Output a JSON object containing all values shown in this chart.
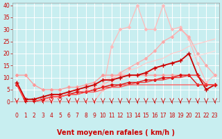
{
  "background_color": "#c8eef0",
  "grid_color": "#ffffff",
  "xlabel": "Vent moyen/en rafales ( km/h )",
  "xlim": [
    -0.5,
    23.5
  ],
  "ylim": [
    0,
    41
  ],
  "xticks": [
    0,
    1,
    2,
    3,
    4,
    5,
    6,
    7,
    8,
    9,
    10,
    11,
    12,
    13,
    14,
    15,
    16,
    17,
    18,
    19,
    20,
    21,
    22,
    23
  ],
  "yticks": [
    0,
    5,
    10,
    15,
    20,
    25,
    30,
    35,
    40
  ],
  "lines": [
    {
      "x": [
        0,
        1,
        2,
        3,
        4,
        5,
        6,
        7,
        8,
        9,
        10,
        11,
        12,
        13,
        14,
        15,
        16,
        17,
        18,
        19,
        20,
        21,
        22,
        23
      ],
      "y": [
        0,
        0,
        0,
        0,
        0,
        0,
        0,
        0,
        0,
        0,
        5,
        23,
        30,
        31,
        40,
        30,
        30,
        40,
        30,
        31,
        26,
        16,
        8,
        11
      ],
      "color": "#ffbbbb",
      "linewidth": 0.9,
      "marker": "D",
      "markersize": 2.0
    },
    {
      "x": [
        0,
        1,
        2,
        3,
        4,
        5,
        6,
        7,
        8,
        9,
        10,
        11,
        12,
        13,
        14,
        15,
        16,
        17,
        18,
        19,
        20,
        21,
        22,
        23
      ],
      "y": [
        0,
        0,
        0,
        0,
        1,
        2,
        3,
        4,
        5,
        6,
        7,
        9,
        12,
        14,
        16,
        18,
        21,
        25,
        27,
        30,
        27,
        20,
        15,
        11
      ],
      "color": "#ffaaaa",
      "linewidth": 0.9,
      "marker": "D",
      "markersize": 2.0
    },
    {
      "x": [
        0,
        1,
        2,
        3,
        4,
        5,
        6,
        7,
        8,
        9,
        10,
        11,
        12,
        13,
        14,
        15,
        16,
        17,
        18,
        19,
        20,
        21,
        22,
        23
      ],
      "y": [
        0,
        0,
        0,
        1,
        2,
        3,
        4,
        5,
        6,
        7,
        9,
        10,
        11,
        13,
        14,
        16,
        17,
        18,
        20,
        21,
        23,
        24,
        25,
        26
      ],
      "color": "#ffcccc",
      "linewidth": 0.9,
      "marker": null,
      "markersize": 0
    },
    {
      "x": [
        0,
        1,
        2,
        3,
        4,
        5,
        6,
        7,
        8,
        9,
        10,
        11,
        12,
        13,
        14,
        15,
        16,
        17,
        18,
        19,
        20,
        21,
        22,
        23
      ],
      "y": [
        0,
        0,
        0,
        1,
        1,
        2,
        3,
        4,
        5,
        6,
        7,
        8,
        9,
        10,
        11,
        12,
        13,
        15,
        16,
        17,
        18,
        19,
        20,
        21
      ],
      "color": "#ffdddd",
      "linewidth": 0.9,
      "marker": null,
      "markersize": 0
    },
    {
      "x": [
        0,
        1,
        2,
        3,
        4,
        5,
        6,
        7,
        8,
        9,
        10,
        11,
        12,
        13,
        14,
        15,
        16,
        17,
        18,
        19,
        20,
        21,
        22,
        23
      ],
      "y": [
        11,
        11,
        7,
        5,
        5,
        5,
        6,
        6,
        7,
        8,
        11,
        11,
        11,
        11,
        11,
        11,
        11,
        11,
        11,
        11,
        11,
        11,
        7,
        7
      ],
      "color": "#ff9999",
      "linewidth": 0.9,
      "marker": "D",
      "markersize": 2.0
    },
    {
      "x": [
        0,
        1,
        2,
        3,
        4,
        5,
        6,
        7,
        8,
        9,
        10,
        11,
        12,
        13,
        14,
        15,
        16,
        17,
        18,
        19,
        20,
        21,
        22,
        23
      ],
      "y": [
        8,
        1,
        1,
        2,
        3,
        3,
        4,
        5,
        6,
        7,
        9,
        9,
        10,
        11,
        11,
        12,
        14,
        15,
        16,
        17,
        20,
        11,
        5,
        7
      ],
      "color": "#cc0000",
      "linewidth": 1.3,
      "marker": "+",
      "markersize": 4
    },
    {
      "x": [
        0,
        1,
        2,
        3,
        4,
        5,
        6,
        7,
        8,
        9,
        10,
        11,
        12,
        13,
        14,
        15,
        16,
        17,
        18,
        19,
        20,
        21,
        22,
        23
      ],
      "y": [
        7,
        0,
        0,
        1,
        2,
        2,
        3,
        4,
        4,
        5,
        6,
        7,
        7,
        8,
        8,
        9,
        9,
        10,
        10,
        11,
        11,
        7,
        7,
        7
      ],
      "color": "#dd1111",
      "linewidth": 1.0,
      "marker": "D",
      "markersize": 2.0
    },
    {
      "x": [
        0,
        1,
        2,
        3,
        4,
        5,
        6,
        7,
        8,
        9,
        10,
        11,
        12,
        13,
        14,
        15,
        16,
        17,
        18,
        19,
        20,
        21,
        22,
        23
      ],
      "y": [
        7,
        0,
        0,
        1,
        2,
        2,
        3,
        3,
        4,
        5,
        6,
        6,
        7,
        7,
        8,
        8,
        9,
        9,
        10,
        10,
        11,
        11,
        7,
        7
      ],
      "color": "#ee3333",
      "linewidth": 0.9,
      "marker": null,
      "markersize": 0
    },
    {
      "x": [
        0,
        1,
        2,
        3,
        4,
        5,
        6,
        7,
        8,
        9,
        10,
        11,
        12,
        13,
        14,
        15,
        16,
        17,
        18,
        19,
        20,
        21,
        22,
        23
      ],
      "y": [
        7,
        0,
        0,
        1,
        2,
        2,
        3,
        3,
        4,
        4,
        5,
        6,
        6,
        7,
        7,
        7,
        7,
        7,
        7,
        7,
        7,
        7,
        7,
        7
      ],
      "color": "#ff5555",
      "linewidth": 0.9,
      "marker": null,
      "markersize": 0
    }
  ],
  "arrow_ybase": -0.5,
  "arrow_ytop": 0.5,
  "arrow_color": "#cc0000",
  "axis_fontsize": 5.5,
  "label_fontsize": 7.0
}
